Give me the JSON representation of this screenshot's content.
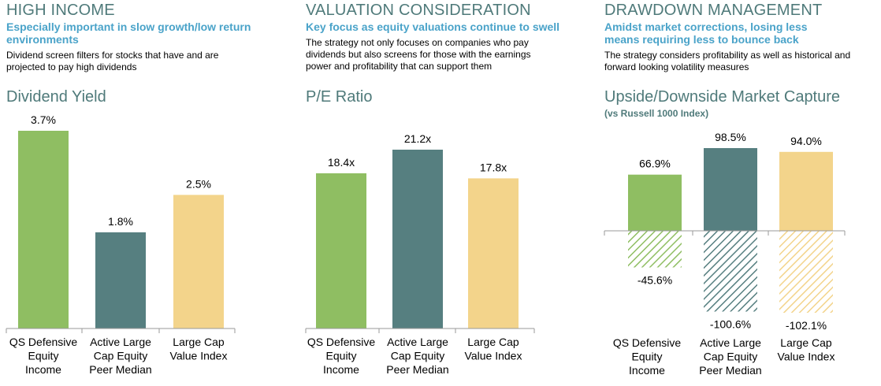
{
  "colors": {
    "heading": "#4f7a7a",
    "subheading": "#4aa3c9",
    "green": "#8fbe62",
    "teal": "#567f80",
    "yellow": "#f3d48b",
    "axis": "#9a9a9a"
  },
  "panels": [
    {
      "heading": "HIGH INCOME",
      "subheading": "Especially important in slow growth/low return environments",
      "description": "Dividend screen filters for stocks that have and are projected to pay high dividends",
      "chart_title": "Dividend Yield"
    },
    {
      "heading": "VALUATION CONSIDERATION",
      "subheading": "Key focus as equity valuations continue to swell",
      "description": "The strategy not only focuses on companies who pay dividends but also screens for those with the earnings power and profitability that can support them",
      "chart_title": "P/E Ratio"
    },
    {
      "heading": "DRAWDOWN MANAGEMENT",
      "subheading": "Amidst market corrections, losing less means requiring less to bounce back",
      "description": "The strategy considers profitability as well as historical and forward looking volatility measures",
      "chart_title": "Upside/Downside Market Capture",
      "chart_subtitle": "(vs Russell 1000 Index)"
    }
  ],
  "chart_data": [
    {
      "type": "bar",
      "title": "Dividend Yield",
      "categories": [
        "QS Defensive Equity Income",
        "Active Large Cap Equity Peer Median",
        "Large Cap Value Index"
      ],
      "category_lines": [
        [
          "QS Defensive",
          "Equity",
          "Income"
        ],
        [
          "Active Large",
          "Cap Equity",
          "Peer Median"
        ],
        [
          "Large Cap",
          "Value Index"
        ]
      ],
      "values": [
        3.7,
        1.8,
        2.5
      ],
      "labels": [
        "3.7%",
        "1.8%",
        "2.5%"
      ],
      "colors": [
        "#8fbe62",
        "#567f80",
        "#f3d48b"
      ],
      "ylim": [
        0,
        3.7
      ]
    },
    {
      "type": "bar",
      "title": "P/E Ratio",
      "categories": [
        "QS Defensive Equity Income",
        "Active Large Cap Equity Peer Median",
        "Large Cap Value Index"
      ],
      "category_lines": [
        [
          "QS Defensive",
          "Equity",
          "Income"
        ],
        [
          "Active Large",
          "Cap Equity",
          "Peer Median"
        ],
        [
          "Large Cap",
          "Value Index"
        ]
      ],
      "values": [
        18.4,
        21.2,
        17.8
      ],
      "labels": [
        "18.4x",
        "21.2x",
        "17.8x"
      ],
      "colors": [
        "#8fbe62",
        "#567f80",
        "#f3d48b"
      ],
      "ylim": [
        0,
        21.2
      ]
    },
    {
      "type": "bar",
      "title": "Upside/Downside Market Capture",
      "subtitle": "(vs Russell 1000 Index)",
      "categories": [
        "QS Defensive Equity Income",
        "Active Large Cap Equity Peer Median",
        "Large Cap Value Index"
      ],
      "category_lines": [
        [
          "QS Defensive",
          "Equity",
          "Income"
        ],
        [
          "Active Large",
          "Cap Equity",
          "Peer Median"
        ],
        [
          "Large Cap",
          "Value Index"
        ]
      ],
      "upside_values": [
        66.9,
        98.5,
        94.0
      ],
      "upside_labels": [
        "66.9%",
        "98.5%",
        "94.0%"
      ],
      "downside_values": [
        -45.6,
        -100.6,
        -102.1
      ],
      "downside_labels": [
        "-45.6%",
        "-100.6%",
        "-102.1%"
      ],
      "colors": [
        "#8fbe62",
        "#567f80",
        "#f3d48b"
      ],
      "ylim": [
        -102.1,
        98.5
      ]
    }
  ]
}
